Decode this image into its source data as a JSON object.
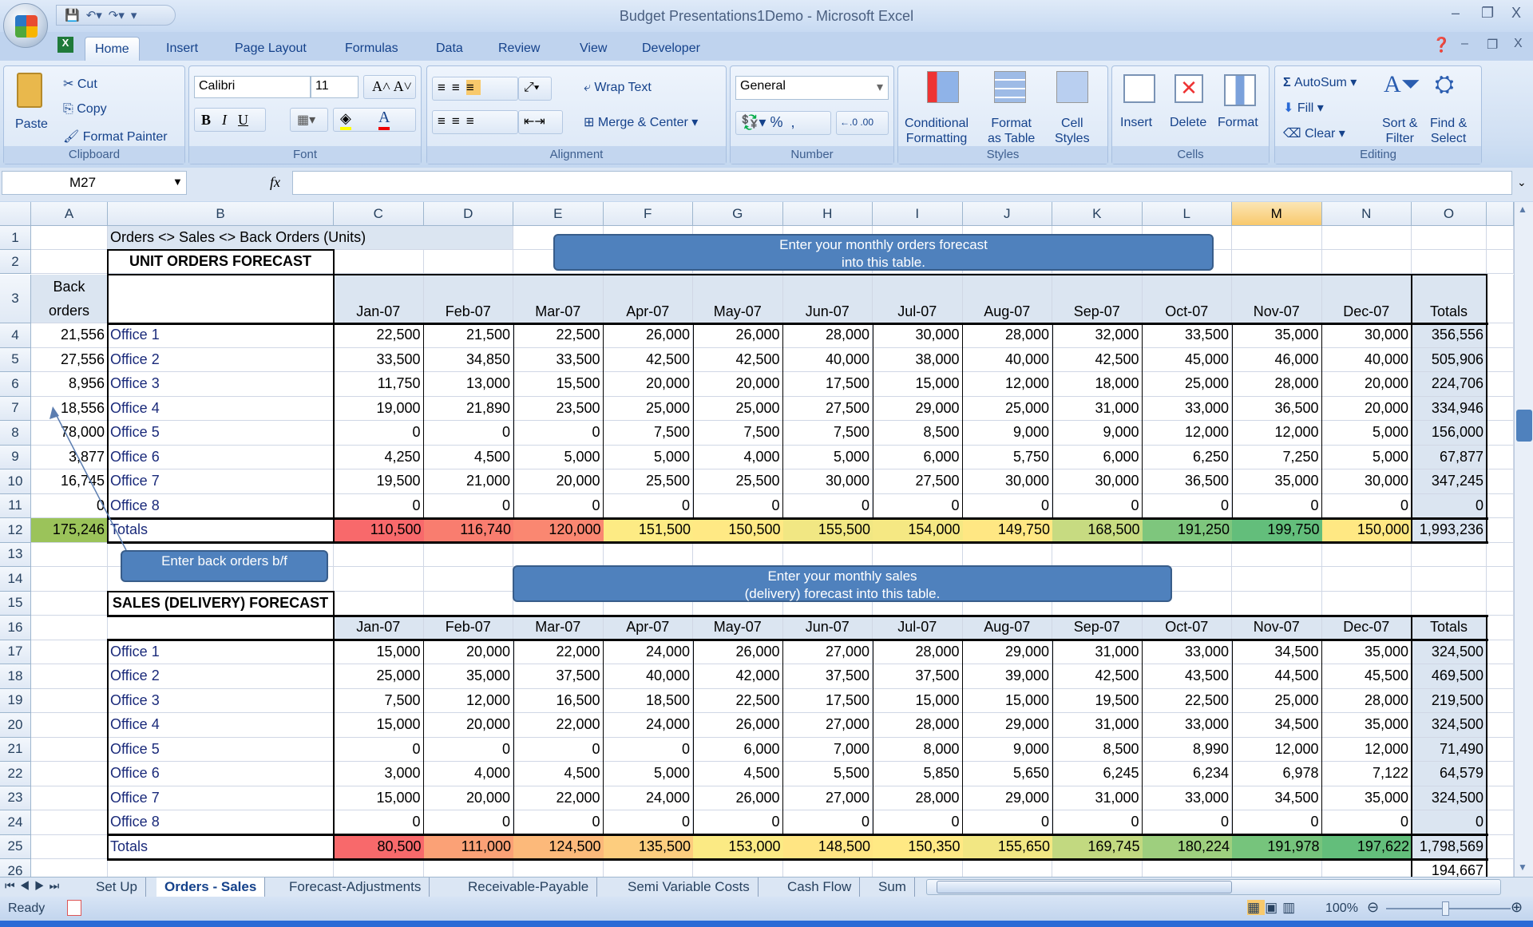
{
  "window": {
    "title": "Budget Presentations1Demo - Microsoft Excel"
  },
  "ribbon_tabs": [
    "Home",
    "Insert",
    "Page Layout",
    "Formulas",
    "Data",
    "Review",
    "View",
    "Developer"
  ],
  "ribbon": {
    "clipboard": {
      "label": "Clipboard",
      "paste": "Paste",
      "cut": "Cut",
      "copy": "Copy",
      "format_painter": "Format Painter"
    },
    "font": {
      "label": "Font",
      "family": "Calibri",
      "size": "11",
      "bold": "B",
      "italic": "I",
      "underline": "U"
    },
    "alignment": {
      "label": "Alignment",
      "wrap_text": "Wrap Text",
      "merge_center": "Merge & Center"
    },
    "number": {
      "label": "Number",
      "format": "General",
      "percent": "%",
      "comma": ","
    },
    "styles": {
      "label": "Styles",
      "conditional": "Conditional\nFormatting",
      "format_table": "Format\nas Table",
      "cell_styles": "Cell\nStyles"
    },
    "cells": {
      "label": "Cells",
      "insert": "Insert",
      "delete": "Delete",
      "format": "Format"
    },
    "editing": {
      "label": "Editing",
      "autosum": "AutoSum",
      "fill": "Fill",
      "clear": "Clear",
      "sort_filter": "Sort &\nFilter",
      "find_select": "Find &\nSelect"
    }
  },
  "formula_bar": {
    "name_box": "M27",
    "fx": "fx",
    "formula": ""
  },
  "column_letters": [
    "A",
    "B",
    "C",
    "D",
    "E",
    "F",
    "G",
    "H",
    "I",
    "J",
    "K",
    "L",
    "M",
    "N",
    "O"
  ],
  "selected_column": "M",
  "row_numbers": [
    "1",
    "2",
    "3",
    "4",
    "5",
    "6",
    "7",
    "8",
    "9",
    "10",
    "11",
    "12",
    "13",
    "14",
    "15",
    "16",
    "17",
    "18",
    "19",
    "20",
    "21",
    "22",
    "23",
    "24",
    "25",
    "26"
  ],
  "sheet": {
    "title_cell": "Orders <> Sales <> Back Orders (Units)",
    "orders": {
      "heading": "UNIT ORDERS FORECAST",
      "back_orders_header": "Back orders",
      "months": [
        "Jan-07",
        "Feb-07",
        "Mar-07",
        "Apr-07",
        "May-07",
        "Jun-07",
        "Jul-07",
        "Aug-07",
        "Sep-07",
        "Oct-07",
        "Nov-07",
        "Dec-07"
      ],
      "totals_header": "Totals",
      "offices": [
        {
          "name": "Office 1",
          "back_orders": "21,556",
          "values": [
            "22,500",
            "21,500",
            "22,500",
            "26,000",
            "26,000",
            "28,000",
            "30,000",
            "28,000",
            "32,000",
            "33,500",
            "35,000",
            "30,000"
          ],
          "total": "356,556"
        },
        {
          "name": "Office 2",
          "back_orders": "27,556",
          "values": [
            "33,500",
            "34,850",
            "33,500",
            "42,500",
            "42,500",
            "40,000",
            "38,000",
            "40,000",
            "42,500",
            "45,000",
            "46,000",
            "40,000"
          ],
          "total": "505,906"
        },
        {
          "name": "Office 3",
          "back_orders": "8,956",
          "values": [
            "11,750",
            "13,000",
            "15,500",
            "20,000",
            "20,000",
            "17,500",
            "15,000",
            "12,000",
            "18,000",
            "25,000",
            "28,000",
            "20,000"
          ],
          "total": "224,706"
        },
        {
          "name": "Office 4",
          "back_orders": "18,556",
          "values": [
            "19,000",
            "21,890",
            "23,500",
            "25,000",
            "25,000",
            "27,500",
            "29,000",
            "25,000",
            "31,000",
            "33,000",
            "36,500",
            "20,000"
          ],
          "total": "334,946"
        },
        {
          "name": "Office 5",
          "back_orders": "78,000",
          "values": [
            "0",
            "0",
            "0",
            "7,500",
            "7,500",
            "7,500",
            "8,500",
            "9,000",
            "9,000",
            "12,000",
            "12,000",
            "5,000"
          ],
          "total": "156,000"
        },
        {
          "name": "Office 6",
          "back_orders": "3,877",
          "values": [
            "4,250",
            "4,500",
            "5,000",
            "5,000",
            "4,000",
            "5,000",
            "6,000",
            "5,750",
            "6,000",
            "6,250",
            "7,250",
            "5,000"
          ],
          "total": "67,877"
        },
        {
          "name": "Office 7",
          "back_orders": "16,745",
          "values": [
            "19,500",
            "21,000",
            "20,000",
            "25,500",
            "25,500",
            "30,000",
            "27,500",
            "30,000",
            "30,000",
            "36,500",
            "35,000",
            "30,000"
          ],
          "total": "347,245"
        },
        {
          "name": "Office 8",
          "back_orders": "0",
          "values": [
            "0",
            "0",
            "0",
            "0",
            "0",
            "0",
            "0",
            "0",
            "0",
            "0",
            "0",
            "0"
          ],
          "total": "0"
        }
      ],
      "totals": {
        "label": "Totals",
        "back_orders": "175,246",
        "values": [
          "110,500",
          "116,740",
          "120,000",
          "151,500",
          "150,500",
          "155,500",
          "154,000",
          "149,750",
          "168,500",
          "191,250",
          "199,750",
          "150,000"
        ],
        "total": "1,993,236"
      }
    },
    "sales": {
      "heading": "SALES (DELIVERY) FORECAST",
      "months": [
        "Jan-07",
        "Feb-07",
        "Mar-07",
        "Apr-07",
        "May-07",
        "Jun-07",
        "Jul-07",
        "Aug-07",
        "Sep-07",
        "Oct-07",
        "Nov-07",
        "Dec-07"
      ],
      "totals_header": "Totals",
      "offices": [
        {
          "name": "Office 1",
          "values": [
            "15,000",
            "20,000",
            "22,000",
            "24,000",
            "26,000",
            "27,000",
            "28,000",
            "29,000",
            "31,000",
            "33,000",
            "34,500",
            "35,000"
          ],
          "total": "324,500"
        },
        {
          "name": "Office 2",
          "values": [
            "25,000",
            "35,000",
            "37,500",
            "40,000",
            "42,000",
            "37,500",
            "37,500",
            "39,000",
            "42,500",
            "43,500",
            "44,500",
            "45,500"
          ],
          "total": "469,500"
        },
        {
          "name": "Office 3",
          "values": [
            "7,500",
            "12,000",
            "16,500",
            "18,500",
            "22,500",
            "17,500",
            "15,000",
            "15,000",
            "19,500",
            "22,500",
            "25,000",
            "28,000"
          ],
          "total": "219,500"
        },
        {
          "name": "Office 4",
          "values": [
            "15,000",
            "20,000",
            "22,000",
            "24,000",
            "26,000",
            "27,000",
            "28,000",
            "29,000",
            "31,000",
            "33,000",
            "34,500",
            "35,000"
          ],
          "total": "324,500"
        },
        {
          "name": "Office 5",
          "values": [
            "0",
            "0",
            "0",
            "0",
            "6,000",
            "7,000",
            "8,000",
            "9,000",
            "8,500",
            "8,990",
            "12,000",
            "12,000"
          ],
          "total": "71,490"
        },
        {
          "name": "Office 6",
          "values": [
            "3,000",
            "4,000",
            "4,500",
            "5,000",
            "4,500",
            "5,500",
            "5,850",
            "5,650",
            "6,245",
            "6,234",
            "6,978",
            "7,122"
          ],
          "total": "64,579"
        },
        {
          "name": "Office 7",
          "values": [
            "15,000",
            "20,000",
            "22,000",
            "24,000",
            "26,000",
            "27,000",
            "28,000",
            "29,000",
            "31,000",
            "33,000",
            "34,500",
            "35,000"
          ],
          "total": "324,500"
        },
        {
          "name": "Office 8",
          "values": [
            "0",
            "0",
            "0",
            "0",
            "0",
            "0",
            "0",
            "0",
            "0",
            "0",
            "0",
            "0"
          ],
          "total": "0"
        }
      ],
      "totals": {
        "label": "Totals",
        "values": [
          "80,500",
          "111,000",
          "124,500",
          "135,500",
          "153,000",
          "148,500",
          "150,350",
          "155,650",
          "169,745",
          "180,224",
          "191,978",
          "197,622"
        ],
        "total": "1,798,569"
      },
      "row26_total": "194,667"
    }
  },
  "notes": {
    "orders": "Enter your monthly  orders forecast\ninto this table.",
    "back_orders": "Enter back orders b/f",
    "sales": "Enter your monthly sales\n(delivery) forecast into this table."
  },
  "sheet_tabs": [
    "Set Up",
    "Orders - Sales",
    "Forecast-Adjustments",
    "Receivable-Payable",
    "Semi Variable Costs",
    "Cash Flow",
    "Sum"
  ],
  "active_sheet": "Orders - Sales",
  "status": {
    "ready": "Ready",
    "zoom": "100%"
  },
  "colors": {
    "scale_min": "#f8696b",
    "scale_mid": "#ffeb84",
    "scale_max": "#63be7b",
    "back_orders_total": "#9bc35a",
    "header_fill": "#dbe5f1",
    "note_fill": "#4f81bd"
  }
}
